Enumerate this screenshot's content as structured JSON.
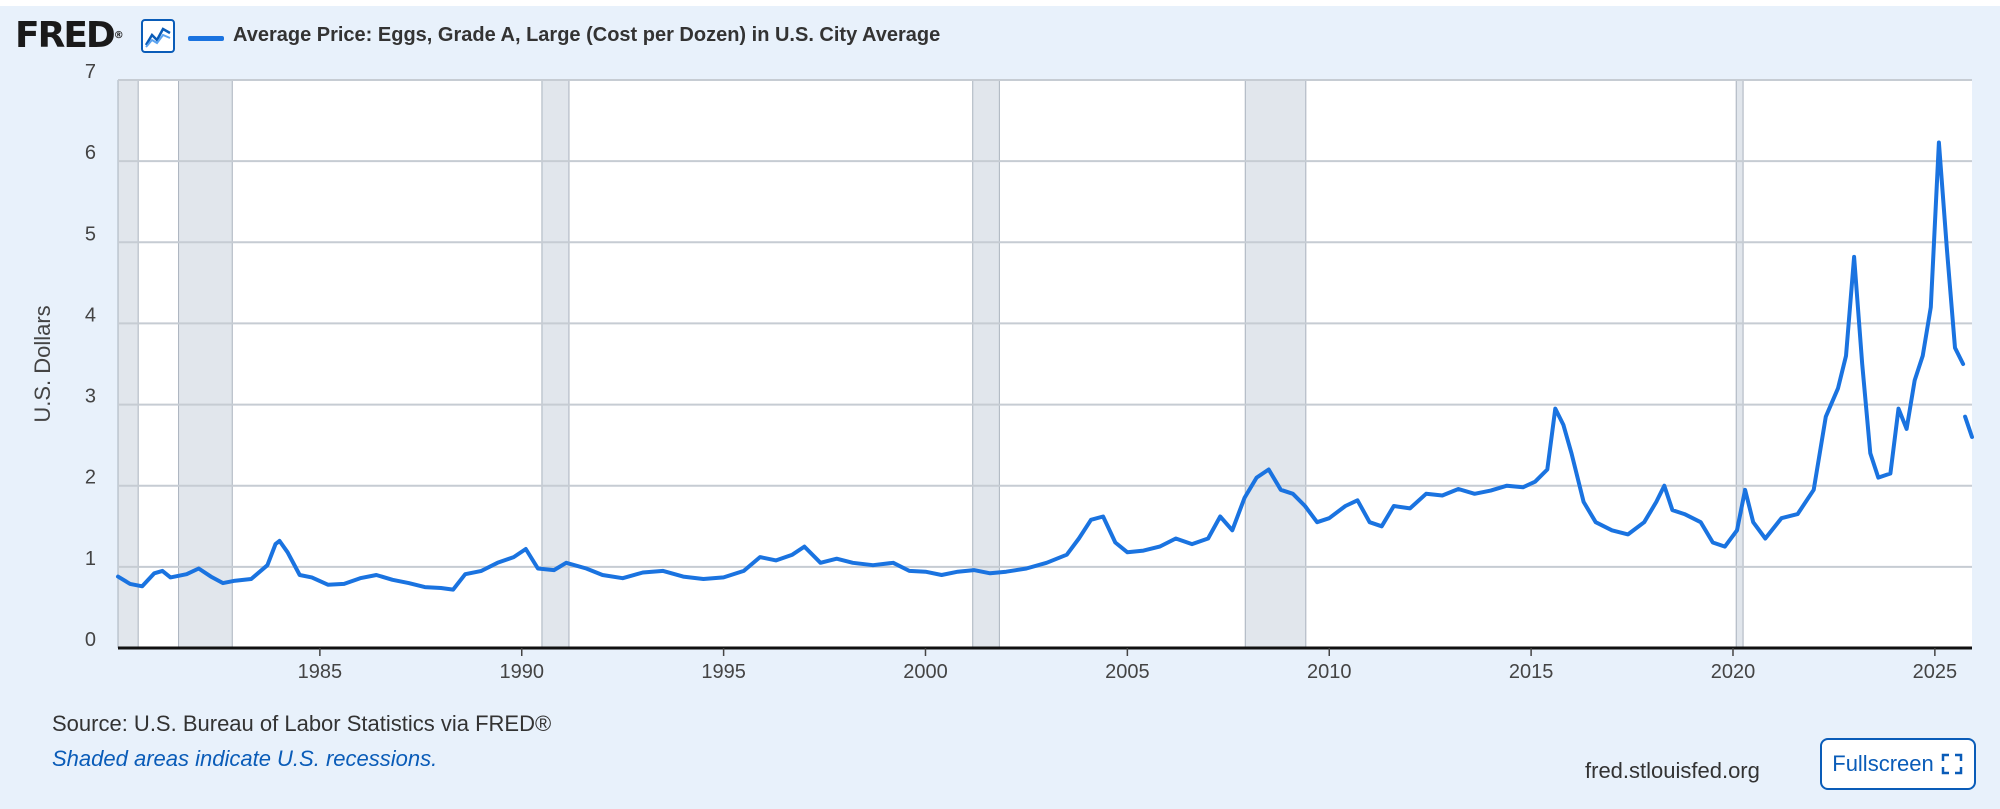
{
  "header": {
    "logo": "FRED",
    "logo_reg": "®",
    "legend": "Average Price: Eggs, Grade A, Large (Cost per Dozen) in U.S. City Average"
  },
  "footer": {
    "source": "Source: U.S. Bureau of Labor Statistics via FRED®",
    "note": "Shaded areas indicate U.S. recessions.",
    "site": "fred.stlouisfed.org",
    "fullscreen_label": "Fullscreen"
  },
  "icons": {
    "logo_graph": "line-graph-icon",
    "fullscreen": "expand-icon"
  },
  "colors": {
    "series": "#1a73e0",
    "recession": "#e1e6ec",
    "background": "#e8f1fb",
    "link": "#0a5cb8"
  },
  "chart_data": {
    "type": "line",
    "title": "Average Price: Eggs, Grade A, Large (Cost per Dozen) in U.S. City Average",
    "xlabel": "",
    "ylabel": "U.S. Dollars",
    "xlim": [
      1980.0,
      2025.92
    ],
    "ylim": [
      0,
      7
    ],
    "yticks": [
      "0",
      "1",
      "2",
      "3",
      "4",
      "5",
      "6",
      "7"
    ],
    "xticks": [
      "1985",
      "1990",
      "1995",
      "2000",
      "2005",
      "2010",
      "2015",
      "2020",
      "2025"
    ],
    "grid": true,
    "recessions": [
      [
        1980.0,
        1980.5
      ],
      [
        1981.5,
        1982.83
      ],
      [
        1990.5,
        1991.17
      ],
      [
        2001.17,
        2001.83
      ],
      [
        2007.92,
        2009.42
      ],
      [
        2020.08,
        2020.25
      ]
    ],
    "series": [
      {
        "name": "Average Price: Eggs, Grade A, Large (Cost per Dozen) in U.S. City Average",
        "points": [
          [
            1980.0,
            0.88
          ],
          [
            1980.3,
            0.79
          ],
          [
            1980.6,
            0.76
          ],
          [
            1980.9,
            0.92
          ],
          [
            1981.1,
            0.95
          ],
          [
            1981.3,
            0.87
          ],
          [
            1981.7,
            0.91
          ],
          [
            1982.0,
            0.98
          ],
          [
            1982.3,
            0.88
          ],
          [
            1982.6,
            0.8
          ],
          [
            1982.9,
            0.83
          ],
          [
            1983.3,
            0.85
          ],
          [
            1983.7,
            1.02
          ],
          [
            1983.9,
            1.28
          ],
          [
            1984.0,
            1.32
          ],
          [
            1984.2,
            1.18
          ],
          [
            1984.5,
            0.9
          ],
          [
            1984.8,
            0.87
          ],
          [
            1985.2,
            0.78
          ],
          [
            1985.6,
            0.79
          ],
          [
            1986.0,
            0.86
          ],
          [
            1986.4,
            0.9
          ],
          [
            1986.8,
            0.84
          ],
          [
            1987.2,
            0.8
          ],
          [
            1987.6,
            0.75
          ],
          [
            1988.0,
            0.74
          ],
          [
            1988.3,
            0.72
          ],
          [
            1988.6,
            0.91
          ],
          [
            1989.0,
            0.95
          ],
          [
            1989.4,
            1.05
          ],
          [
            1989.8,
            1.12
          ],
          [
            1990.1,
            1.22
          ],
          [
            1990.4,
            0.98
          ],
          [
            1990.8,
            0.96
          ],
          [
            1991.1,
            1.05
          ],
          [
            1991.6,
            0.98
          ],
          [
            1992.0,
            0.9
          ],
          [
            1992.5,
            0.86
          ],
          [
            1993.0,
            0.93
          ],
          [
            1993.5,
            0.95
          ],
          [
            1994.0,
            0.88
          ],
          [
            1994.5,
            0.85
          ],
          [
            1995.0,
            0.87
          ],
          [
            1995.5,
            0.95
          ],
          [
            1995.9,
            1.12
          ],
          [
            1996.3,
            1.08
          ],
          [
            1996.7,
            1.15
          ],
          [
            1997.0,
            1.25
          ],
          [
            1997.4,
            1.05
          ],
          [
            1997.8,
            1.1
          ],
          [
            1998.2,
            1.05
          ],
          [
            1998.7,
            1.02
          ],
          [
            1999.2,
            1.05
          ],
          [
            1999.6,
            0.95
          ],
          [
            2000.0,
            0.94
          ],
          [
            2000.4,
            0.9
          ],
          [
            2000.8,
            0.94
          ],
          [
            2001.2,
            0.96
          ],
          [
            2001.6,
            0.92
          ],
          [
            2002.0,
            0.94
          ],
          [
            2002.5,
            0.98
          ],
          [
            2003.0,
            1.05
          ],
          [
            2003.5,
            1.15
          ],
          [
            2003.8,
            1.35
          ],
          [
            2004.1,
            1.58
          ],
          [
            2004.4,
            1.62
          ],
          [
            2004.7,
            1.3
          ],
          [
            2005.0,
            1.18
          ],
          [
            2005.4,
            1.2
          ],
          [
            2005.8,
            1.25
          ],
          [
            2006.2,
            1.35
          ],
          [
            2006.6,
            1.28
          ],
          [
            2007.0,
            1.35
          ],
          [
            2007.3,
            1.62
          ],
          [
            2007.6,
            1.45
          ],
          [
            2007.9,
            1.85
          ],
          [
            2008.2,
            2.1
          ],
          [
            2008.5,
            2.2
          ],
          [
            2008.8,
            1.95
          ],
          [
            2009.1,
            1.9
          ],
          [
            2009.4,
            1.75
          ],
          [
            2009.7,
            1.55
          ],
          [
            2010.0,
            1.6
          ],
          [
            2010.4,
            1.75
          ],
          [
            2010.7,
            1.82
          ],
          [
            2011.0,
            1.55
          ],
          [
            2011.3,
            1.5
          ],
          [
            2011.6,
            1.75
          ],
          [
            2012.0,
            1.72
          ],
          [
            2012.4,
            1.9
          ],
          [
            2012.8,
            1.88
          ],
          [
            2013.2,
            1.96
          ],
          [
            2013.6,
            1.9
          ],
          [
            2014.0,
            1.94
          ],
          [
            2014.4,
            2.0
          ],
          [
            2014.8,
            1.98
          ],
          [
            2015.1,
            2.05
          ],
          [
            2015.4,
            2.2
          ],
          [
            2015.6,
            2.95
          ],
          [
            2015.8,
            2.75
          ],
          [
            2016.0,
            2.4
          ],
          [
            2016.3,
            1.8
          ],
          [
            2016.6,
            1.55
          ],
          [
            2017.0,
            1.45
          ],
          [
            2017.4,
            1.4
          ],
          [
            2017.8,
            1.55
          ],
          [
            2018.1,
            1.8
          ],
          [
            2018.3,
            2.0
          ],
          [
            2018.5,
            1.7
          ],
          [
            2018.8,
            1.65
          ],
          [
            2019.2,
            1.55
          ],
          [
            2019.5,
            1.3
          ],
          [
            2019.8,
            1.25
          ],
          [
            2020.1,
            1.45
          ],
          [
            2020.3,
            1.95
          ],
          [
            2020.5,
            1.55
          ],
          [
            2020.8,
            1.35
          ],
          [
            2021.2,
            1.6
          ],
          [
            2021.6,
            1.65
          ],
          [
            2022.0,
            1.95
          ],
          [
            2022.3,
            2.85
          ],
          [
            2022.6,
            3.2
          ],
          [
            2022.8,
            3.6
          ],
          [
            2023.0,
            4.82
          ],
          [
            2023.2,
            3.5
          ],
          [
            2023.4,
            2.4
          ],
          [
            2023.6,
            2.1
          ],
          [
            2023.9,
            2.15
          ],
          [
            2024.1,
            2.95
          ],
          [
            2024.3,
            2.7
          ],
          [
            2024.5,
            3.3
          ],
          [
            2024.7,
            3.6
          ],
          [
            2024.9,
            4.2
          ],
          [
            2025.1,
            6.23
          ],
          [
            2025.3,
            4.9
          ],
          [
            2025.5,
            3.7
          ],
          [
            2025.7,
            3.5
          ],
          null,
          [
            2025.75,
            2.85
          ],
          [
            2025.92,
            2.6
          ]
        ]
      }
    ]
  }
}
